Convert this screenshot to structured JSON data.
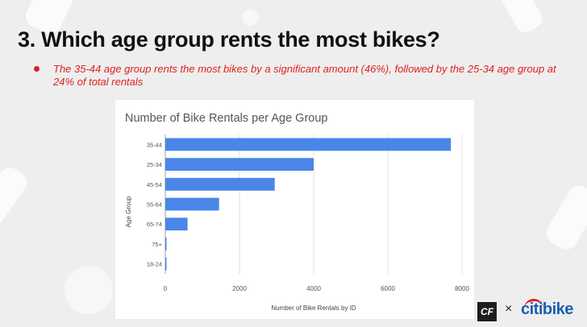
{
  "slide": {
    "title": "3. Which age group rents the most bikes?",
    "bullet": "The 35-44 age group rents the most bikes by a significant amount (46%), followed by the 25-34 age group at 24% of total rentals"
  },
  "logos": {
    "cf": "CF",
    "times": "×",
    "citibike": "citibike"
  },
  "colors": {
    "bar": "#4a86e8",
    "bullet": "#e02020",
    "gridline": "#e0e0e0"
  },
  "chart_data": {
    "type": "bar",
    "orientation": "horizontal",
    "title": "Number of Bike Rentals per Age Group",
    "xlabel": "Number of Bike Rentals by ID",
    "ylabel": "Age Group",
    "categories": [
      "35-44",
      "25-34",
      "45-54",
      "55-64",
      "65-74",
      "75+",
      "18-24"
    ],
    "values": [
      7700,
      4000,
      2950,
      1450,
      600,
      30,
      20
    ],
    "xlim": [
      0,
      8000
    ],
    "xticks": [
      0,
      2000,
      4000,
      6000,
      8000
    ],
    "grid": true,
    "legend": "none"
  }
}
